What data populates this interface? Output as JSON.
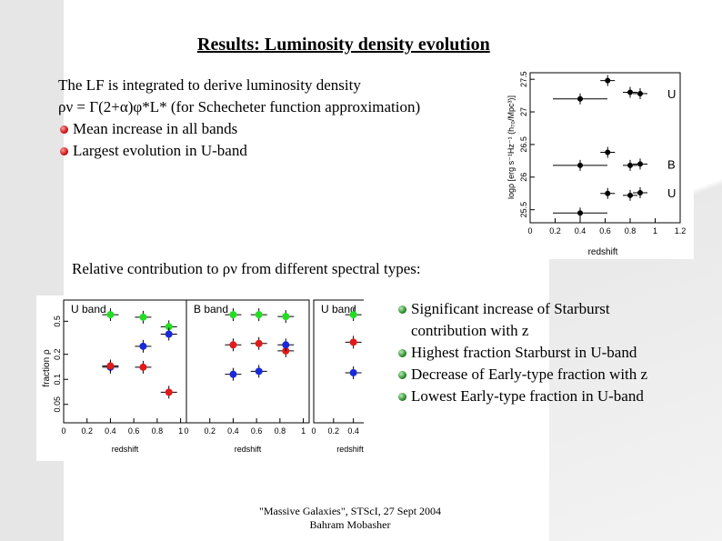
{
  "title": "Results: Luminosity density evolution",
  "intro": {
    "line1": "The LF is integrated to derive luminosity density",
    "line2": "ρν = Γ(2+α)φ*L* (for Schecheter function approximation)",
    "bullets": [
      "Mean increase in all bands",
      "Largest evolution in U-band"
    ]
  },
  "relative_heading": "Relative contribution to ρν from different spectral types:",
  "right_bullets": [
    "Significant increase of Starburst",
    "contribution with z",
    "Highest fraction Starburst in U-band",
    "Decrease of Early-type fraction with z",
    "Lowest Early-type fraction in U-band"
  ],
  "footer": {
    "line1": "\"Massive Galaxies\", STScI, 27 Sept 2004",
    "line2": "Bahram Mobasher"
  },
  "chart_data": [
    {
      "type": "scatter",
      "xlabel": "redshift",
      "ylabel": "logρ [erg s⁻¹Hz⁻¹ (h₇₀/Mpc³)]",
      "xlim": [
        0,
        1.2
      ],
      "ylim": [
        25.3,
        27.6
      ],
      "xticks": [
        "0",
        "0.2",
        "0.4",
        "0.6",
        "0.8",
        "1",
        "1.2"
      ],
      "yticks": [
        "25.5",
        "26",
        "26.5",
        "27",
        "27.5"
      ],
      "band_labels": [
        "U",
        "B",
        "U"
      ],
      "series": [
        {
          "points": [
            [
              0.4,
              27.2
            ],
            [
              0.62,
              27.48
            ],
            [
              0.8,
              27.3
            ],
            [
              0.88,
              27.28
            ]
          ]
        },
        {
          "points": [
            [
              0.4,
              26.18
            ],
            [
              0.62,
              26.38
            ],
            [
              0.8,
              26.18
            ],
            [
              0.88,
              26.2
            ]
          ]
        },
        {
          "points": [
            [
              0.4,
              25.45
            ],
            [
              0.62,
              25.75
            ],
            [
              0.8,
              25.72
            ],
            [
              0.88,
              25.76
            ]
          ]
        }
      ]
    },
    {
      "type": "scatter",
      "xlabel": "redshift",
      "ylabel": "fraction ρ",
      "panels": [
        {
          "label": "U band",
          "xticks": [
            "0",
            "0.2",
            "0.4",
            "0.6",
            "0.8",
            "1"
          ],
          "yticks": [
            "0.05",
            "0.1",
            "0.2",
            "0.5"
          ],
          "xlim": [
            0,
            1.05
          ],
          "ylim": [
            0.03,
            0.9
          ],
          "series": [
            {
              "color": "#22dd22",
              "points": [
                [
                  0.4,
                  0.6
                ],
                [
                  0.68,
                  0.56
                ],
                [
                  0.9,
                  0.43
                ]
              ]
            },
            {
              "color": "#1a2ad8",
              "points": [
                [
                  0.4,
                  0.14
                ],
                [
                  0.68,
                  0.25
                ],
                [
                  0.9,
                  0.35
                ]
              ]
            },
            {
              "color": "#e21a1a",
              "points": [
                [
                  0.4,
                  0.145
                ],
                [
                  0.68,
                  0.14
                ],
                [
                  0.9,
                  0.07
                ]
              ]
            }
          ]
        },
        {
          "label": "B band",
          "xticks": [
            "0",
            "0.2",
            "0.4",
            "0.6",
            "0.8",
            "1"
          ],
          "xlim": [
            0,
            1.05
          ],
          "ylim": [
            0.03,
            0.9
          ],
          "series": [
            {
              "color": "#22dd22",
              "points": [
                [
                  0.4,
                  0.6
                ],
                [
                  0.62,
                  0.6
                ],
                [
                  0.85,
                  0.57
                ]
              ]
            },
            {
              "color": "#e21a1a",
              "points": [
                [
                  0.4,
                  0.26
                ],
                [
                  0.62,
                  0.27
                ],
                [
                  0.85,
                  0.22
                ]
              ]
            },
            {
              "color": "#1a2ad8",
              "points": [
                [
                  0.4,
                  0.115
                ],
                [
                  0.62,
                  0.125
                ],
                [
                  0.85,
                  0.26
                ]
              ]
            }
          ]
        },
        {
          "label": "U band",
          "xticks": [
            "0",
            "0.2",
            "0.4"
          ],
          "xlim": [
            0,
            0.55
          ],
          "ylim": [
            0.03,
            0.9
          ],
          "series": [
            {
              "color": "#22dd22",
              "points": [
                [
                  0.4,
                  0.6
                ]
              ]
            },
            {
              "color": "#e21a1a",
              "points": [
                [
                  0.4,
                  0.28
                ]
              ]
            },
            {
              "color": "#1a2ad8",
              "points": [
                [
                  0.4,
                  0.12
                ]
              ]
            }
          ]
        }
      ]
    }
  ]
}
